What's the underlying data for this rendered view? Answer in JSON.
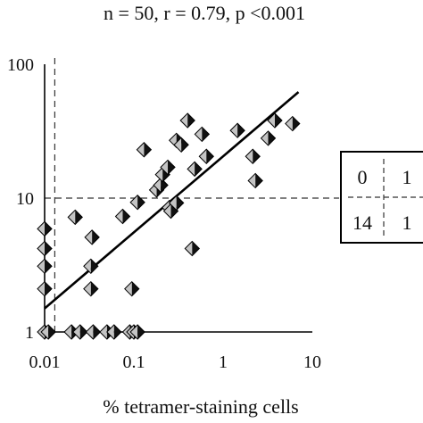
{
  "chart_data": {
    "type": "scatter",
    "title": "n = 50, r = 0.79, p <0.001",
    "xlabel": "% tetramer-staining cells",
    "ylabel": "",
    "x_scale": "log",
    "y_scale": "log",
    "xlim": [
      0.01,
      10
    ],
    "ylim": [
      1,
      100
    ],
    "x_ticks": [
      "0.01",
      "0.1",
      "1",
      "10"
    ],
    "y_ticks": [
      "1",
      "10",
      "100"
    ],
    "grid": false,
    "threshold_lines": {
      "x": 0.013,
      "y": 10
    },
    "regression_line": {
      "x": [
        0.01,
        7.0
      ],
      "y": [
        1.5,
        62
      ]
    },
    "points": [
      {
        "x": 0.01,
        "y": 1
      },
      {
        "x": 0.011,
        "y": 1
      },
      {
        "x": 0.02,
        "y": 1
      },
      {
        "x": 0.025,
        "y": 1
      },
      {
        "x": 0.035,
        "y": 1
      },
      {
        "x": 0.05,
        "y": 1
      },
      {
        "x": 0.06,
        "y": 1
      },
      {
        "x": 0.09,
        "y": 1
      },
      {
        "x": 0.1,
        "y": 1
      },
      {
        "x": 0.11,
        "y": 1
      },
      {
        "x": 0.01,
        "y": 2.1
      },
      {
        "x": 0.01,
        "y": 3.1
      },
      {
        "x": 0.01,
        "y": 4.2
      },
      {
        "x": 0.01,
        "y": 5.9
      },
      {
        "x": 0.033,
        "y": 3.1
      },
      {
        "x": 0.033,
        "y": 2.1
      },
      {
        "x": 0.034,
        "y": 5.1
      },
      {
        "x": 0.022,
        "y": 7.2
      },
      {
        "x": 0.075,
        "y": 7.3
      },
      {
        "x": 0.095,
        "y": 2.1
      },
      {
        "x": 0.11,
        "y": 9.3
      },
      {
        "x": 0.13,
        "y": 23
      },
      {
        "x": 0.18,
        "y": 11.5
      },
      {
        "x": 0.2,
        "y": 12.5
      },
      {
        "x": 0.21,
        "y": 15
      },
      {
        "x": 0.24,
        "y": 17
      },
      {
        "x": 0.25,
        "y": 8.5
      },
      {
        "x": 0.26,
        "y": 8
      },
      {
        "x": 0.3,
        "y": 9.2
      },
      {
        "x": 0.3,
        "y": 27
      },
      {
        "x": 0.34,
        "y": 25
      },
      {
        "x": 0.4,
        "y": 38
      },
      {
        "x": 0.45,
        "y": 4.2
      },
      {
        "x": 0.48,
        "y": 16.5
      },
      {
        "x": 0.58,
        "y": 30
      },
      {
        "x": 0.65,
        "y": 20.5
      },
      {
        "x": 1.45,
        "y": 32
      },
      {
        "x": 2.15,
        "y": 20.5
      },
      {
        "x": 2.3,
        "y": 13.5
      },
      {
        "x": 3.2,
        "y": 28
      },
      {
        "x": 3.8,
        "y": 38
      },
      {
        "x": 6.0,
        "y": 36
      }
    ],
    "quadrant_table": {
      "cells": [
        [
          "0",
          "1"
        ],
        [
          "14",
          "1"
        ]
      ]
    }
  }
}
